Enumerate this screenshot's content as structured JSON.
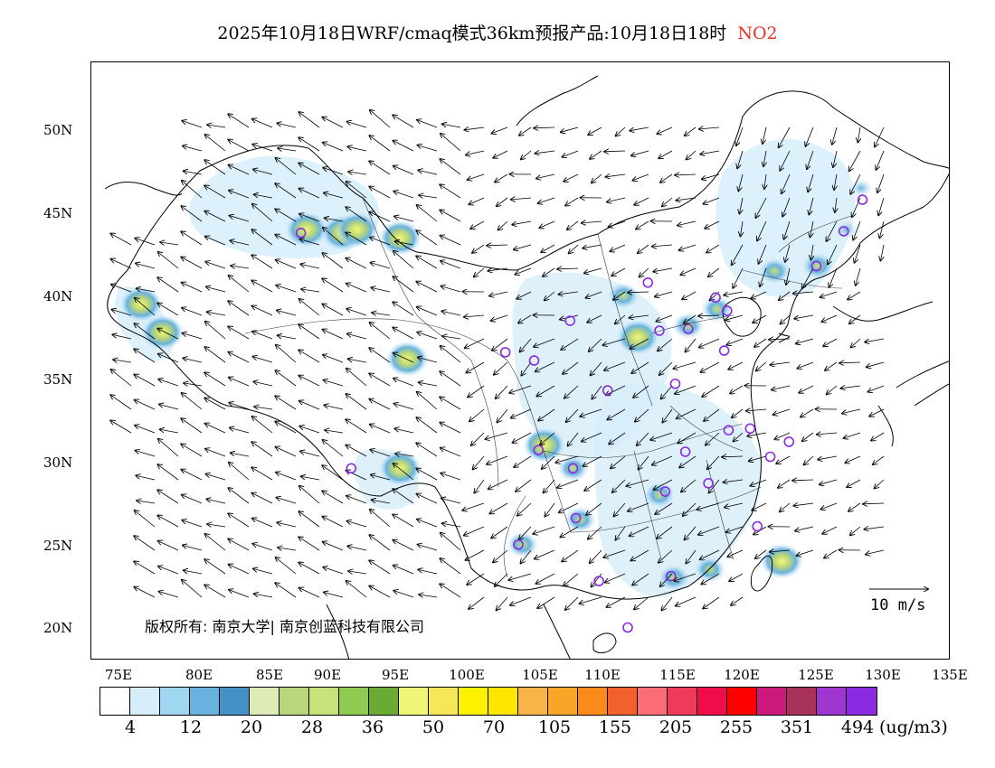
{
  "title": {
    "main": "2025年10月18日WRF/cmaq模式36km预报产品:10月18日18时",
    "species": "NO2",
    "species_color": "#e8332a"
  },
  "map": {
    "lat_labels": [
      "50N",
      "45N",
      "40N",
      "35N",
      "30N",
      "25N",
      "20N"
    ],
    "lon_labels": [
      "75E",
      "80E",
      "85E",
      "90E",
      "95E",
      "100E",
      "105E",
      "110E",
      "115E",
      "120E",
      "125E",
      "130E",
      "135E"
    ],
    "copyright": "版权所有: 南京大学| 南京创蓝科技有限公司",
    "wind_reference": "10 m/s",
    "hotspots": [
      {
        "lon": 88.0,
        "lat": 44.0,
        "level": "high"
      },
      {
        "lon": 90.5,
        "lat": 43.8,
        "level": "high"
      },
      {
        "lon": 91.5,
        "lat": 44.0,
        "level": "high"
      },
      {
        "lon": 94.5,
        "lat": 43.5,
        "level": "high"
      },
      {
        "lon": 76.5,
        "lat": 39.5,
        "level": "high"
      },
      {
        "lon": 78.0,
        "lat": 37.8,
        "level": "high"
      },
      {
        "lon": 95.0,
        "lat": 36.2,
        "level": "high"
      },
      {
        "lon": 104.5,
        "lat": 31.0,
        "level": "high"
      },
      {
        "lon": 106.5,
        "lat": 29.6,
        "level": "mid"
      },
      {
        "lon": 94.5,
        "lat": 29.6,
        "level": "high"
      },
      {
        "lon": 103.0,
        "lat": 25.0,
        "level": "mid"
      },
      {
        "lon": 107.0,
        "lat": 26.5,
        "level": "mid"
      },
      {
        "lon": 111.0,
        "lat": 37.5,
        "level": "high"
      },
      {
        "lon": 112.5,
        "lat": 28.0,
        "level": "mid"
      },
      {
        "lon": 114.5,
        "lat": 38.2,
        "level": "mid"
      },
      {
        "lon": 116.5,
        "lat": 39.2,
        "level": "mid"
      },
      {
        "lon": 120.5,
        "lat": 41.5,
        "level": "mid"
      },
      {
        "lon": 123.5,
        "lat": 41.8,
        "level": "mid"
      },
      {
        "lon": 125.5,
        "lat": 44.0,
        "level": "low"
      },
      {
        "lon": 113.5,
        "lat": 23.0,
        "level": "mid"
      },
      {
        "lon": 116.0,
        "lat": 23.5,
        "level": "mid"
      },
      {
        "lon": 121.0,
        "lat": 24.0,
        "level": "high"
      },
      {
        "lon": 110.0,
        "lat": 40.0,
        "level": "mid"
      },
      {
        "lon": 126.5,
        "lat": 46.5,
        "level": "low"
      }
    ],
    "cities": [
      {
        "lon": 87.6,
        "lat": 43.8
      },
      {
        "lon": 101.8,
        "lat": 36.6
      },
      {
        "lon": 103.8,
        "lat": 36.1
      },
      {
        "lon": 106.3,
        "lat": 38.5
      },
      {
        "lon": 111.7,
        "lat": 40.8
      },
      {
        "lon": 112.5,
        "lat": 37.9
      },
      {
        "lon": 114.5,
        "lat": 38.0
      },
      {
        "lon": 116.4,
        "lat": 39.9
      },
      {
        "lon": 117.2,
        "lat": 39.1
      },
      {
        "lon": 117.0,
        "lat": 36.7
      },
      {
        "lon": 113.6,
        "lat": 34.7
      },
      {
        "lon": 108.9,
        "lat": 34.3
      },
      {
        "lon": 104.1,
        "lat": 30.7
      },
      {
        "lon": 106.5,
        "lat": 29.6
      },
      {
        "lon": 106.7,
        "lat": 26.6
      },
      {
        "lon": 102.7,
        "lat": 25.0
      },
      {
        "lon": 91.1,
        "lat": 29.6
      },
      {
        "lon": 108.3,
        "lat": 22.8
      },
      {
        "lon": 113.3,
        "lat": 23.1
      },
      {
        "lon": 110.3,
        "lat": 20.0
      },
      {
        "lon": 112.9,
        "lat": 28.2
      },
      {
        "lon": 114.3,
        "lat": 30.6
      },
      {
        "lon": 115.9,
        "lat": 28.7
      },
      {
        "lon": 117.3,
        "lat": 31.9
      },
      {
        "lon": 118.8,
        "lat": 32.0
      },
      {
        "lon": 120.2,
        "lat": 30.3
      },
      {
        "lon": 121.5,
        "lat": 31.2
      },
      {
        "lon": 119.3,
        "lat": 26.1
      },
      {
        "lon": 123.4,
        "lat": 41.8
      },
      {
        "lon": 125.3,
        "lat": 43.9
      },
      {
        "lon": 126.6,
        "lat": 45.8
      }
    ]
  },
  "colorbar": {
    "colors": [
      "#ffffff",
      "#d6eefa",
      "#9fd7f3",
      "#69b2de",
      "#4590c4",
      "#dcebb8",
      "#bad67a",
      "#c8e17b",
      "#8fcb50",
      "#6aab38",
      "#f0f776",
      "#f5e65a",
      "#fff200",
      "#ffe500",
      "#f9b447",
      "#f9a628",
      "#fb8c1a",
      "#f2602e",
      "#fb6e76",
      "#f03a5a",
      "#ef0c48",
      "#ff0000",
      "#cc1a7c",
      "#a8325a",
      "#9f36cf",
      "#8a2be2"
    ],
    "labels": [
      "4",
      "12",
      "20",
      "28",
      "36",
      "50",
      "70",
      "105",
      "155",
      "205",
      "255",
      "351",
      "494"
    ],
    "unit": "(ug/m3)"
  }
}
